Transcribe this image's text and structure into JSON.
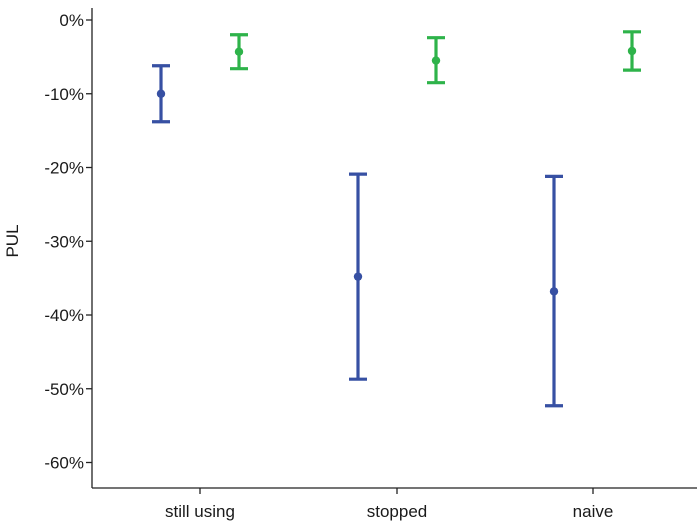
{
  "chart_data": {
    "type": "errorbar",
    "title": "",
    "xlabel": "",
    "ylabel": "PUL",
    "ylim": [
      -0.64,
      0.0
    ],
    "y_tick_values": [
      0,
      -0.1,
      -0.2,
      -0.3,
      -0.4,
      -0.5,
      -0.6
    ],
    "y_tick_labels": [
      "0%",
      "-10%",
      "-20%",
      "-30%",
      "-40%",
      "-50%",
      "-60%"
    ],
    "categories": [
      "still using",
      "stopped",
      "naive"
    ],
    "grid": false,
    "legend": "none",
    "series": [
      {
        "color": "#3750a3",
        "points": [
          {
            "category": "still using",
            "mean": -0.1,
            "lower": -0.138,
            "upper": -0.062
          },
          {
            "category": "stopped",
            "mean": -0.348,
            "lower": -0.487,
            "upper": -0.209
          },
          {
            "category": "naive",
            "mean": -0.368,
            "lower": -0.523,
            "upper": -0.212
          }
        ]
      },
      {
        "color": "#2eb34a",
        "points": [
          {
            "category": "still using",
            "mean": -0.043,
            "lower": -0.066,
            "upper": -0.02
          },
          {
            "category": "stopped",
            "mean": -0.055,
            "lower": -0.085,
            "upper": -0.024
          },
          {
            "category": "naive",
            "mean": -0.042,
            "lower": -0.068,
            "upper": -0.016
          }
        ]
      }
    ]
  }
}
